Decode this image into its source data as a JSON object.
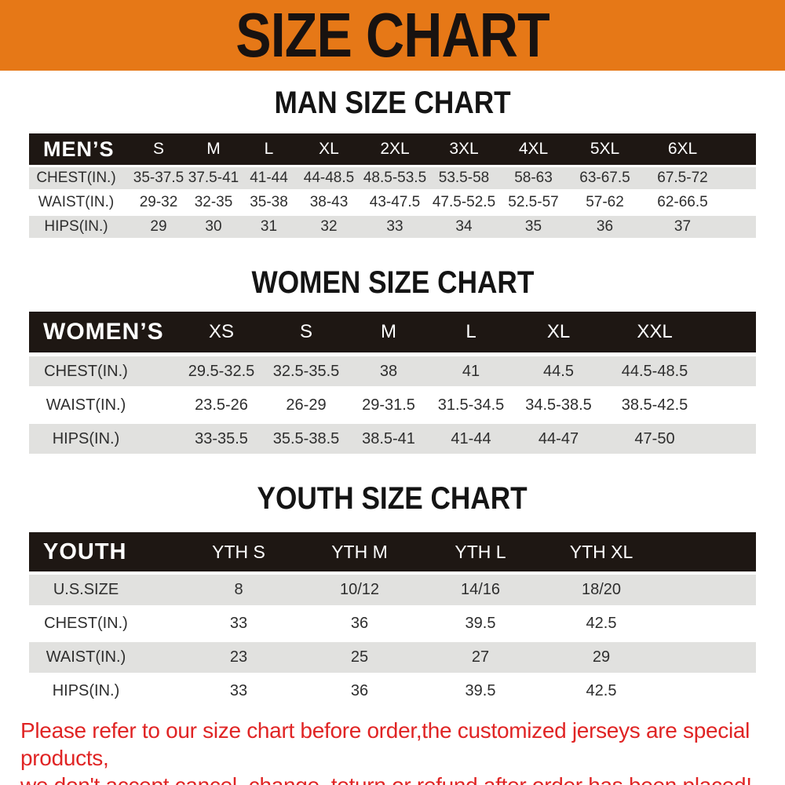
{
  "banner": {
    "title": "SIZE CHART",
    "background_color": "#e67817",
    "title_color": "#181210"
  },
  "men": {
    "heading": "MAN SIZE CHART",
    "header_label": "MEN’S",
    "sizes": [
      "S",
      "M",
      "L",
      "XL",
      "2XL",
      "3XL",
      "4XL",
      "5XL",
      "6XL"
    ],
    "rows": [
      {
        "label": "CHEST(IN.)",
        "values": [
          "35-37.5",
          "37.5-41",
          "41-44",
          "44-48.5",
          "48.5-53.5",
          "53.5-58",
          "58-63",
          "63-67.5",
          "67.5-72"
        ]
      },
      {
        "label": "WAIST(IN.)",
        "values": [
          "29-32",
          "32-35",
          "35-38",
          "38-43",
          "43-47.5",
          "47.5-52.5",
          "52.5-57",
          "57-62",
          "62-66.5"
        ]
      },
      {
        "label": "HIPS(IN.)",
        "values": [
          "29",
          "30",
          "31",
          "32",
          "33",
          "34",
          "35",
          "36",
          "37"
        ]
      }
    ]
  },
  "women": {
    "heading": "WOMEN SIZE CHART",
    "header_label": "WOMEN’S",
    "sizes": [
      "XS",
      "S",
      "M",
      "L",
      "XL",
      "XXL"
    ],
    "rows": [
      {
        "label": "CHEST(IN.)",
        "values": [
          "29.5-32.5",
          "32.5-35.5",
          "38",
          "41",
          "44.5",
          "44.5-48.5"
        ]
      },
      {
        "label": "WAIST(IN.)",
        "values": [
          "23.5-26",
          "26-29",
          "29-31.5",
          "31.5-34.5",
          "34.5-38.5",
          "38.5-42.5"
        ]
      },
      {
        "label": "HIPS(IN.)",
        "values": [
          "33-35.5",
          "35.5-38.5",
          "38.5-41",
          "41-44",
          "44-47",
          "47-50"
        ]
      }
    ]
  },
  "youth": {
    "heading": "YOUTH SIZE CHART",
    "header_label": "YOUTH",
    "sizes": [
      "YTH S",
      "YTH M",
      "YTH L",
      "YTH XL"
    ],
    "rows": [
      {
        "label": "U.S.SIZE",
        "values": [
          "8",
          "10/12",
          "14/16",
          "18/20"
        ]
      },
      {
        "label": "CHEST(IN.)",
        "values": [
          "33",
          "36",
          "39.5",
          "42.5"
        ]
      },
      {
        "label": "WAIST(IN.)",
        "values": [
          "23",
          "25",
          "27",
          "29"
        ]
      },
      {
        "label": "HIPS(IN.)",
        "values": [
          "33",
          "36",
          "39.5",
          "42.5"
        ]
      }
    ]
  },
  "footer": {
    "line1": "Please refer to our size chart before order,the customized jerseys are special products,",
    "line2": "we don't accept cancel, change, teturn or refund after order has been placed!",
    "text_color": "#e02424"
  },
  "colors": {
    "table_header_bg": "#1e1713",
    "row_alt_bg": "#e1e1df",
    "row_bg": "#ffffff"
  }
}
